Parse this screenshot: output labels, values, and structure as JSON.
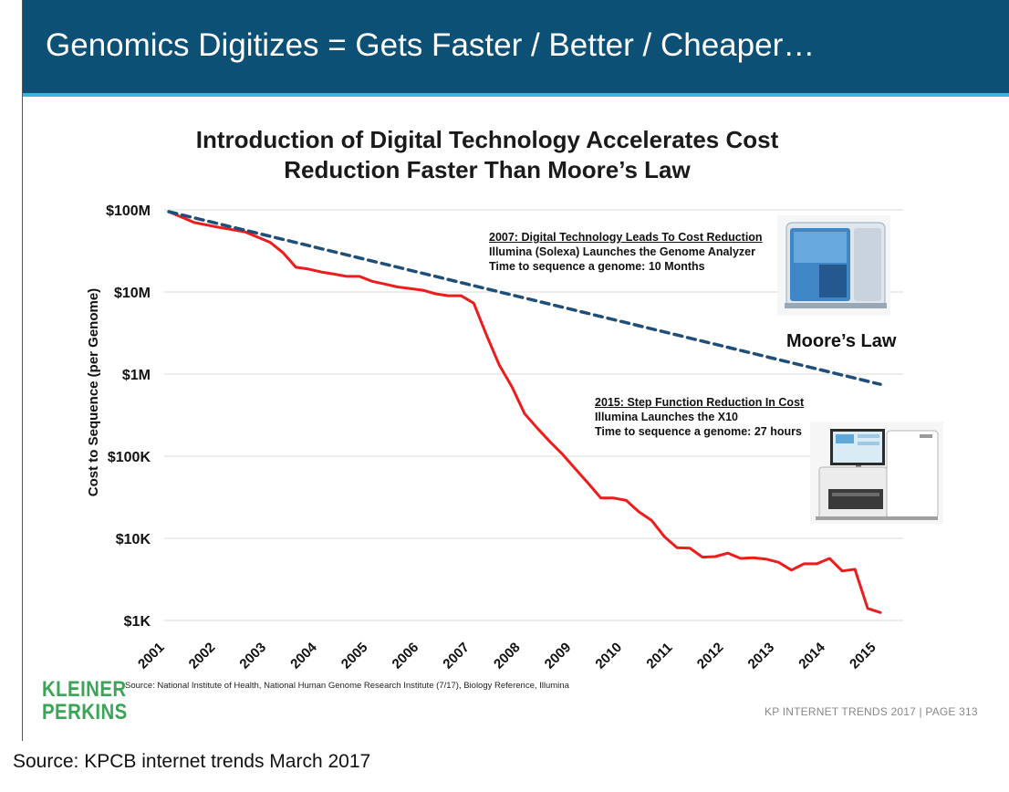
{
  "slide": {
    "title": "Genomics Digitizes = Gets Faster / Better / Cheaper…",
    "source": "Source: National Institute of Health, National Human Genome Research Institute (7/17), Biology Reference, Illumina",
    "logo": [
      "KLEINER",
      "PERKINS"
    ],
    "footer": "KP INTERNET TRENDS 2017  |  PAGE 313",
    "caption": "Source: KPCB internet trends March 2017",
    "colors": {
      "header": "#0d5076",
      "accent": "#37b6d9",
      "actual": "#ee1c1c",
      "moore": "#1f4e79",
      "logo": "#3aa556"
    }
  },
  "chart_data": {
    "type": "line",
    "title_lines": [
      "Introduction of Digital Technology Accelerates Cost",
      "Reduction Faster Than Moore’s Law"
    ],
    "ylabel": "Cost to Sequence (per Genome)",
    "xlabel": "",
    "yscale": "log",
    "ylim": [
      1000,
      100000000
    ],
    "xlim": [
      2001,
      2015
    ],
    "x_tick_labels": [
      "2001",
      "2002",
      "2003",
      "2004",
      "2005",
      "2006",
      "2007",
      "2008",
      "2009",
      "2010",
      "2011",
      "2012",
      "2013",
      "2014",
      "2015"
    ],
    "y_ticks": [
      {
        "value": 100000000,
        "label": "$100M"
      },
      {
        "value": 10000000,
        "label": "$10M"
      },
      {
        "value": 1000000,
        "label": "$1M"
      },
      {
        "value": 100000,
        "label": "$100K"
      },
      {
        "value": 10000,
        "label": "$10K"
      },
      {
        "value": 1000,
        "label": "$1K"
      }
    ],
    "grid": "horizontal",
    "series": [
      {
        "name": "",
        "style": "solid",
        "color": "#ee1c1c",
        "points": [
          [
            2001.0,
            95000000
          ],
          [
            2001.5,
            70000000
          ],
          [
            2002.0,
            61000000
          ],
          [
            2002.5,
            54000000
          ],
          [
            2003.0,
            40000000
          ],
          [
            2003.25,
            30000000
          ],
          [
            2003.5,
            20000000
          ],
          [
            2003.75,
            19000000
          ],
          [
            2004.0,
            17500000
          ],
          [
            2004.25,
            16500000
          ],
          [
            2004.5,
            15500000
          ],
          [
            2004.75,
            15500000
          ],
          [
            2005.0,
            13500000
          ],
          [
            2005.25,
            12500000
          ],
          [
            2005.5,
            11500000
          ],
          [
            2005.75,
            11000000
          ],
          [
            2006.0,
            10500000
          ],
          [
            2006.25,
            9500000
          ],
          [
            2006.5,
            9000000
          ],
          [
            2006.75,
            9000000
          ],
          [
            2007.0,
            7300000
          ],
          [
            2007.25,
            3000000
          ],
          [
            2007.5,
            1300000
          ],
          [
            2007.75,
            700000
          ],
          [
            2008.0,
            330000
          ],
          [
            2008.25,
            220000
          ],
          [
            2008.5,
            150000
          ],
          [
            2008.75,
            105000
          ],
          [
            2009.0,
            70000
          ],
          [
            2009.25,
            47000
          ],
          [
            2009.5,
            31000
          ],
          [
            2009.75,
            31000
          ],
          [
            2010.0,
            29000
          ],
          [
            2010.25,
            21000
          ],
          [
            2010.5,
            16500
          ],
          [
            2010.75,
            10500
          ],
          [
            2011.0,
            7700
          ],
          [
            2011.25,
            7600
          ],
          [
            2011.5,
            5900
          ],
          [
            2011.75,
            6000
          ],
          [
            2012.0,
            6600
          ],
          [
            2012.25,
            5700
          ],
          [
            2012.5,
            5800
          ],
          [
            2012.75,
            5600
          ],
          [
            2013.0,
            5100
          ],
          [
            2013.25,
            4100
          ],
          [
            2013.5,
            4900
          ],
          [
            2013.75,
            4900
          ],
          [
            2014.0,
            5700
          ],
          [
            2014.25,
            4000
          ],
          [
            2014.5,
            4200
          ],
          [
            2014.75,
            1400
          ],
          [
            2015.0,
            1250
          ]
        ]
      },
      {
        "name": "Moore’s Law",
        "style": "dashed",
        "color": "#1f4e79",
        "points": [
          [
            2001.0,
            95000000
          ],
          [
            2015.0,
            750000
          ]
        ]
      }
    ],
    "annotations": [
      {
        "heading": "2007: Digital Technology Leads To Cost Reduction",
        "lines": [
          "Illumina (Solexa) Launches the Genome Analyzer",
          "Time to sequence a genome: 10 Months"
        ]
      },
      {
        "heading": "2015: Step Function Reduction In Cost",
        "lines": [
          "Illumina Launches the X10",
          "Time to sequence a genome: 27 hours"
        ]
      }
    ]
  }
}
